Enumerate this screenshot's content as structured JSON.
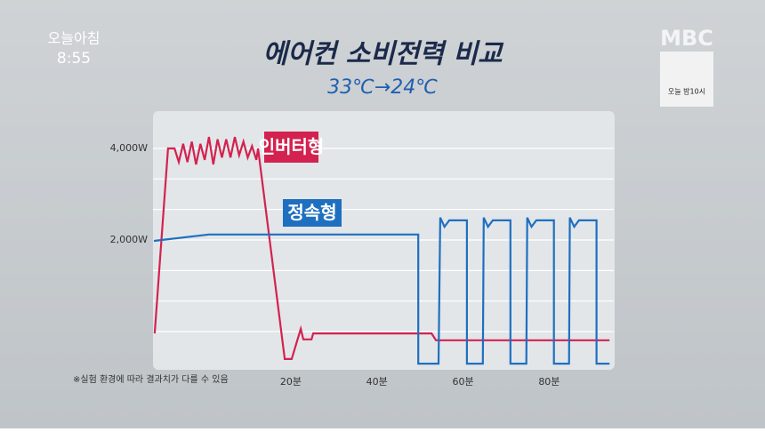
{
  "chart_data": {
    "type": "line",
    "title": "에어컨 소비전력 비교",
    "subtitle": "33℃→24℃",
    "note": "※실험 환경에 따라 결과치가 다를 수 있음",
    "xlim": [
      -12,
      95
    ],
    "ylim": [
      -815,
      4815
    ],
    "xticks": [
      {
        "value": 20,
        "label": "20분"
      },
      {
        "value": 40,
        "label": "40분"
      },
      {
        "value": 60,
        "label": "60분"
      },
      {
        "value": 80,
        "label": "80분"
      }
    ],
    "yticks": [
      {
        "value": 2000,
        "label": "2,000W"
      },
      {
        "value": 4000,
        "label": "4,000W"
      }
    ],
    "ygrid": [
      0,
      667,
      1333,
      2000,
      2667,
      3333,
      4000
    ],
    "grid": true,
    "series": [
      {
        "name": "인버터형",
        "color": "#d3224f",
        "x": [
          -11.6,
          -8.5,
          -7,
          -6,
          -5,
          -4,
          -3,
          -2,
          -1,
          0,
          1,
          2,
          3,
          4,
          5,
          6,
          7,
          8,
          9,
          10,
          11,
          12,
          12.4,
          18.6,
          20.2,
          22.3,
          22.9,
          24.8,
          25.2,
          52.7,
          53.7,
          94
        ],
        "values": [
          -40,
          4000,
          4000,
          3700,
          4100,
          3700,
          4150,
          3650,
          4100,
          3750,
          4250,
          3650,
          4200,
          3800,
          4200,
          3800,
          4250,
          3850,
          4150,
          3800,
          4050,
          3750,
          4000,
          -600,
          -600,
          60,
          -170,
          -170,
          -40,
          -40,
          -190,
          -190
        ]
      },
      {
        "name": "정속형",
        "color": "#1f6fc0",
        "x": [
          -11.8,
          1,
          49.6,
          49.6,
          54.3,
          54.7,
          55.7,
          56.8,
          60.9,
          60.9,
          64.6,
          64.8,
          65.8,
          66.9,
          71,
          71,
          74.7,
          74.9,
          75.9,
          77,
          81.1,
          81.1,
          84.6,
          84.8,
          85.8,
          86.9,
          91,
          91,
          94
        ],
        "values": [
          1980,
          2120,
          2120,
          -700,
          -700,
          2490,
          2290,
          2430,
          2430,
          -700,
          -700,
          2490,
          2290,
          2430,
          2430,
          -700,
          -700,
          2490,
          2290,
          2430,
          2430,
          -700,
          -700,
          2490,
          2290,
          2430,
          2430,
          -700,
          -700
        ]
      }
    ]
  },
  "overlay": {
    "program": "오늘아침",
    "time": "8:55",
    "channel": "MBC",
    "promo": "오늘 밤10시"
  }
}
